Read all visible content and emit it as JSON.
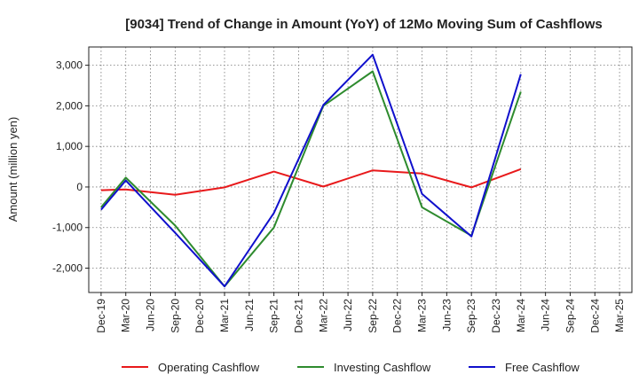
{
  "chart_data": {
    "type": "line",
    "title": "[9034]  Trend of Change in Amount (YoY) of 12Mo Moving Sum of Cashflows",
    "xlabel": "",
    "ylabel": "Amount (million yen)",
    "ylim": [
      -2600,
      3450
    ],
    "yticks": [
      3000,
      2000,
      1000,
      0,
      -1000,
      -2000
    ],
    "ytick_labels": [
      "3,000",
      "2,000",
      "1,000",
      "0",
      "-1,000",
      "-2,000"
    ],
    "categories": [
      "Dec-19",
      "Mar-20",
      "Jun-20",
      "Sep-20",
      "Dec-20",
      "Mar-21",
      "Jun-21",
      "Sep-21",
      "Dec-21",
      "Mar-22",
      "Jun-22",
      "Sep-22",
      "Dec-22",
      "Mar-23",
      "Jun-23",
      "Sep-23",
      "Dec-23",
      "Mar-24",
      "Jun-24",
      "Sep-24",
      "Dec-24",
      "Mar-25"
    ],
    "grid": true,
    "legend_position": "bottom",
    "series": [
      {
        "name": "Operating Cashflow",
        "color": "#e8191b",
        "values": [
          -80,
          -60,
          null,
          -190,
          null,
          -10,
          null,
          380,
          null,
          10,
          null,
          410,
          null,
          330,
          null,
          -10,
          null,
          440,
          null,
          null,
          null,
          null
        ]
      },
      {
        "name": "Investing Cashflow",
        "color": "#2e8b2e",
        "values": [
          -500,
          230,
          null,
          -950,
          null,
          -2450,
          null,
          -1000,
          null,
          2000,
          null,
          2850,
          null,
          -500,
          null,
          -1200,
          null,
          2350,
          null,
          null,
          null,
          null
        ]
      },
      {
        "name": "Free Cashflow",
        "color": "#1010cc",
        "values": [
          -560,
          160,
          null,
          -1130,
          null,
          -2450,
          null,
          -640,
          null,
          2020,
          null,
          3260,
          null,
          -170,
          null,
          -1220,
          null,
          2780,
          null,
          null,
          null,
          null
        ]
      }
    ]
  }
}
